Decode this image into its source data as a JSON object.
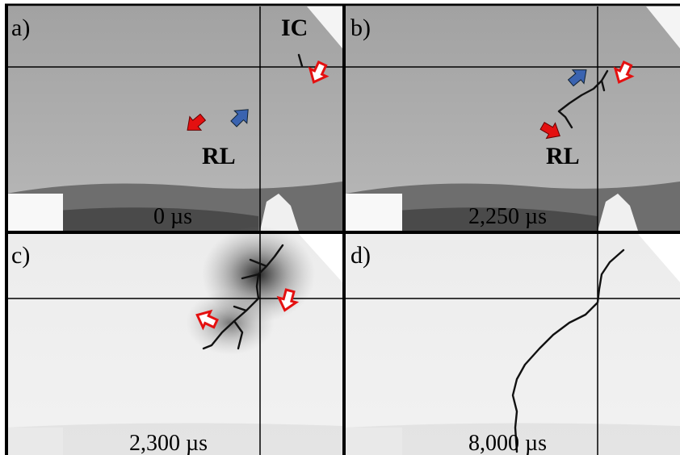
{
  "panels": [
    {
      "label": "a)",
      "annotations": [
        "IC",
        "RL"
      ],
      "time": "0 µs"
    },
    {
      "label": "b)",
      "annotations": [
        "RL"
      ],
      "time": "2,250 µs"
    },
    {
      "label": "c)",
      "time": "2,300 µs"
    },
    {
      "label": "d)",
      "time": "8,000 µs"
    }
  ]
}
